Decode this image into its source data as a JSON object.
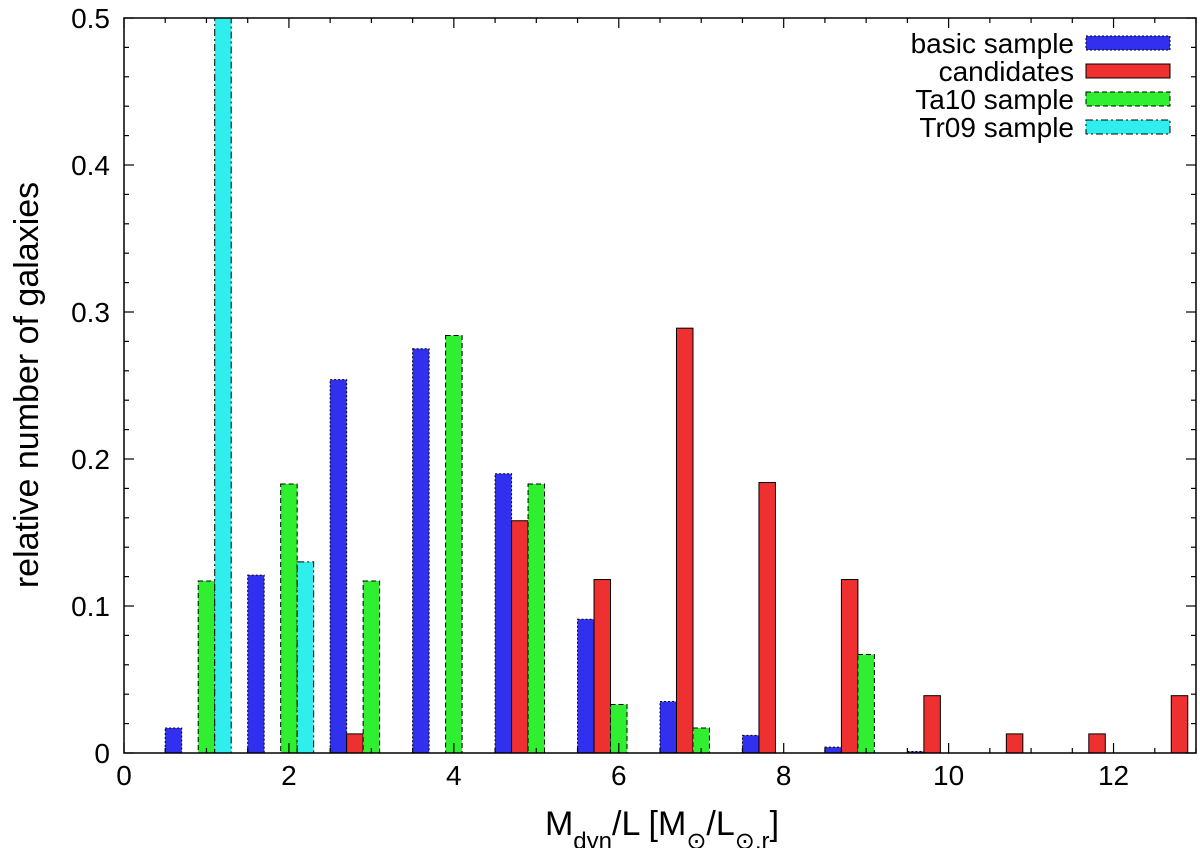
{
  "chart_data": {
    "type": "bar",
    "title": "",
    "xlabel": "M_dyn/L [M_⊙/L_⊙,r]",
    "xlabel_parts": {
      "main": "M",
      "sub1": "dyn",
      "mid": "/L [M",
      "sub2": "⊙",
      "mid2": "/L",
      "sub3": "⊙,r",
      "end": "]"
    },
    "ylabel": "relative number of galaxies",
    "xlim": [
      0,
      13
    ],
    "ylim": [
      0,
      0.5
    ],
    "xticks": [
      0,
      2,
      4,
      6,
      8,
      10,
      12
    ],
    "yticks": [
      0,
      0.1,
      0.2,
      0.3,
      0.4,
      0.5
    ],
    "legend_position": "top-right",
    "series": [
      {
        "name": "basic sample",
        "color": "#3030ee",
        "dash": "dotted",
        "x": [
          0.6,
          1.6,
          2.6,
          3.6,
          4.6,
          5.6,
          6.6,
          7.6,
          8.6,
          9.6,
          10.6,
          11.6,
          12.6
        ],
        "values": [
          0.017,
          0.121,
          0.254,
          0.275,
          0.19,
          0.091,
          0.035,
          0.012,
          0.004,
          0.001,
          0.0,
          0.0,
          0.0
        ]
      },
      {
        "name": "candidates",
        "color": "#ee3030",
        "dash": "solid",
        "x": [
          2.8,
          4.8,
          5.8,
          6.8,
          7.8,
          8.8,
          9.8,
          10.8,
          11.8,
          12.8
        ],
        "values": [
          0.013,
          0.158,
          0.118,
          0.289,
          0.184,
          0.118,
          0.039,
          0.013,
          0.013,
          0.039
        ]
      },
      {
        "name": "Ta10 sample",
        "color": "#30ee30",
        "dash": "dashed",
        "x": [
          1.0,
          2.0,
          3.0,
          4.0,
          5.0,
          6.0,
          7.0,
          9.0
        ],
        "values": [
          0.117,
          0.183,
          0.117,
          0.284,
          0.183,
          0.033,
          0.017,
          0.067
        ]
      },
      {
        "name": "Tr09 sample",
        "color": "#30eeee",
        "dash": "dashdot",
        "x": [
          1.2,
          2.2
        ],
        "values": [
          0.5,
          0.13
        ]
      }
    ]
  }
}
